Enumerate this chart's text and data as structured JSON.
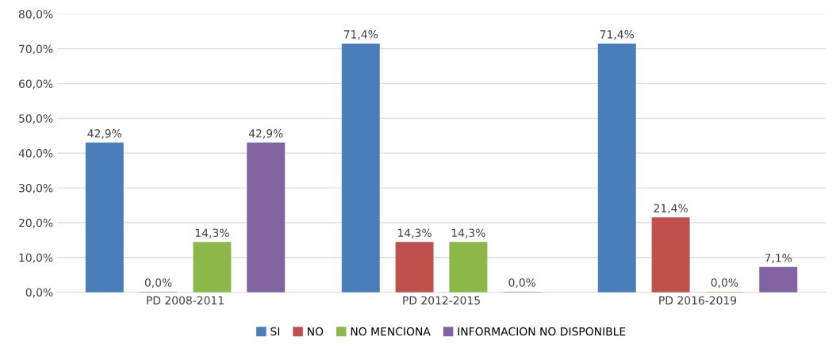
{
  "chart_data": {
    "type": "bar",
    "categories": [
      "PD 2008-2011",
      "PD 2012-2015",
      "PD 2016-2019"
    ],
    "series": [
      {
        "name": "SI",
        "color": "#4a7ebb",
        "values": [
          42.9,
          71.4,
          71.4
        ],
        "value_labels": [
          "42,9%",
          "71,4%",
          "71,4%"
        ]
      },
      {
        "name": "NO",
        "color": "#c0504d",
        "values": [
          0.0,
          14.3,
          21.4
        ],
        "value_labels": [
          "0,0%",
          "14,3%",
          "21,4%"
        ]
      },
      {
        "name": "NO MENCIONA",
        "color": "#8cb84a",
        "values": [
          14.3,
          14.3,
          0.0
        ],
        "value_labels": [
          "14,3%",
          "14,3%",
          "0,0%"
        ]
      },
      {
        "name": "INFORMACION NO DISPONIBLE",
        "color": "#8064a2",
        "values": [
          42.9,
          0.0,
          7.1
        ],
        "value_labels": [
          "42,9%",
          "0,0%",
          "7,1%"
        ]
      }
    ],
    "ylim": [
      0,
      80
    ],
    "yticks": [
      {
        "value": 0,
        "label": "0,0%"
      },
      {
        "value": 10,
        "label": "10,0%"
      },
      {
        "value": 20,
        "label": "20,0%"
      },
      {
        "value": 30,
        "label": "30,0%"
      },
      {
        "value": 40,
        "label": "40,0%"
      },
      {
        "value": 50,
        "label": "50,0%"
      },
      {
        "value": 60,
        "label": "60,0%"
      },
      {
        "value": 70,
        "label": "70,0%"
      },
      {
        "value": 80,
        "label": "80,0%"
      }
    ],
    "grid": "y",
    "legend": "bottom"
  }
}
